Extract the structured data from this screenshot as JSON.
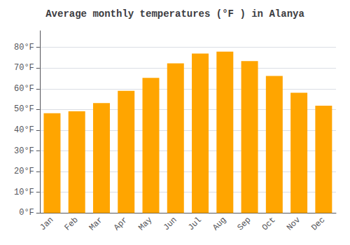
{
  "chart_data": {
    "type": "bar",
    "title": "Average monthly temperatures (°F ) in Alanya",
    "categories": [
      "Jan",
      "Feb",
      "Mar",
      "Apr",
      "May",
      "Jun",
      "Jul",
      "Aug",
      "Sep",
      "Oct",
      "Nov",
      "Dec"
    ],
    "values": [
      48.2,
      49.1,
      53.1,
      59.0,
      65.3,
      72.3,
      77.0,
      77.9,
      73.4,
      66.2,
      58.1,
      51.8
    ],
    "color": "#FFA500",
    "ylim": [
      0,
      88
    ],
    "yticks": [
      {
        "value": 0,
        "label": "0°F"
      },
      {
        "value": 10,
        "label": "10°F"
      },
      {
        "value": 20,
        "label": "20°F"
      },
      {
        "value": 30,
        "label": "30°F"
      },
      {
        "value": 40,
        "label": "40°F"
      },
      {
        "value": 50,
        "label": "50°F"
      },
      {
        "value": 60,
        "label": "60°F"
      },
      {
        "value": 70,
        "label": "70°F"
      },
      {
        "value": 80,
        "label": "80°F"
      }
    ],
    "grid": true
  }
}
